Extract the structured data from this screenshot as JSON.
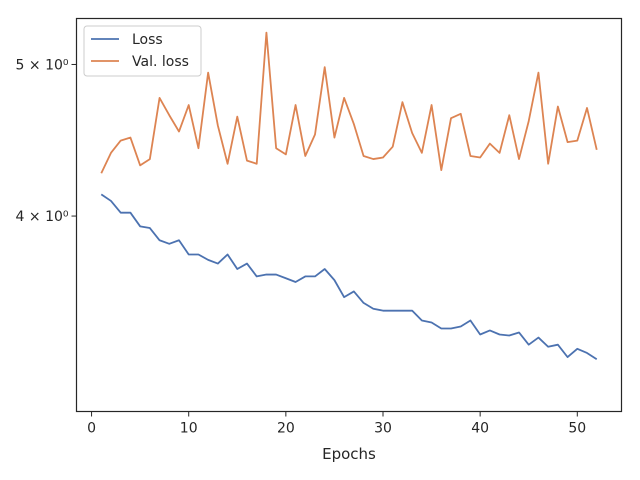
{
  "chart_data": {
    "type": "line",
    "xlabel": "Epochs",
    "ylabel": "",
    "xlim": [
      -1.55,
      54.55
    ],
    "ylim": [
      3.0,
      5.35
    ],
    "yscale": "log",
    "grid": false,
    "legend_position": "top-left",
    "x_ticks": [
      0,
      10,
      20,
      30,
      40,
      50
    ],
    "x_tick_labels": [
      "0",
      "10",
      "20",
      "30",
      "40",
      "50"
    ],
    "y_ticks": [
      4.0,
      5.0
    ],
    "y_tick_labels": [
      "4 × 10⁰",
      "5 × 10⁰"
    ],
    "x": [
      1,
      2,
      3,
      4,
      5,
      6,
      7,
      8,
      9,
      10,
      11,
      12,
      13,
      14,
      15,
      16,
      17,
      18,
      19,
      20,
      21,
      22,
      23,
      24,
      25,
      26,
      27,
      28,
      29,
      30,
      31,
      32,
      33,
      34,
      35,
      36,
      37,
      38,
      39,
      40,
      41,
      42,
      43,
      44,
      45,
      46,
      47,
      48,
      49,
      50,
      51,
      52
    ],
    "series": [
      {
        "name": "Loss",
        "color": "#4c72b0",
        "values": [
          4.13,
          4.09,
          4.02,
          4.02,
          3.94,
          3.93,
          3.86,
          3.84,
          3.86,
          3.78,
          3.78,
          3.75,
          3.73,
          3.78,
          3.7,
          3.73,
          3.66,
          3.67,
          3.67,
          3.65,
          3.63,
          3.66,
          3.66,
          3.7,
          3.64,
          3.55,
          3.58,
          3.52,
          3.49,
          3.48,
          3.48,
          3.48,
          3.48,
          3.43,
          3.42,
          3.39,
          3.39,
          3.4,
          3.43,
          3.36,
          3.38,
          3.36,
          3.355,
          3.37,
          3.31,
          3.345,
          3.3,
          3.31,
          3.25,
          3.29,
          3.27,
          3.24
        ]
      },
      {
        "name": "Val. loss",
        "color": "#dd8452",
        "values": [
          4.26,
          4.39,
          4.47,
          4.49,
          4.31,
          4.35,
          4.76,
          4.64,
          4.53,
          4.71,
          4.42,
          4.94,
          4.57,
          4.32,
          4.63,
          4.34,
          4.32,
          5.24,
          4.42,
          4.38,
          4.71,
          4.37,
          4.51,
          4.98,
          4.49,
          4.76,
          4.58,
          4.37,
          4.35,
          4.36,
          4.43,
          4.73,
          4.52,
          4.39,
          4.71,
          4.28,
          4.62,
          4.65,
          4.37,
          4.36,
          4.45,
          4.39,
          4.64,
          4.35,
          4.6,
          4.94,
          4.32,
          4.7,
          4.46,
          4.47,
          4.69,
          4.41
        ]
      }
    ]
  }
}
